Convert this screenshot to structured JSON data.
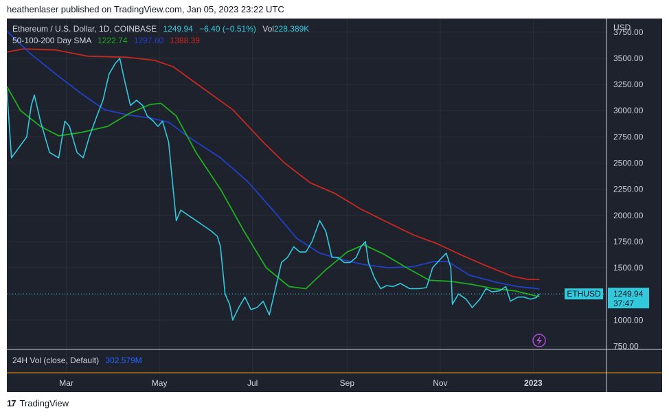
{
  "publish_line": "heathenlaser published on TradingView.com, Jan 05, 2023 23:22 UTC",
  "legend": {
    "symbol_info": "Ethereum / U.S. Dollar, 1D, COINBASE",
    "price": "1249.94",
    "change": "−6.40 (−0.51%)",
    "vol_label": "Vol",
    "vol_value": "228.389K",
    "sma_label": "50-100-200 Day SMA",
    "sma50": "1222.74",
    "sma100": "1297.60",
    "sma200": "1388.39"
  },
  "volume_pane": {
    "label": "24H Vol (close, Default)",
    "value": "302.579M"
  },
  "price_tag": {
    "symbol": "ETHUSD",
    "price": "1249.94",
    "countdown": "37:47"
  },
  "footer": {
    "brand": "TradingView",
    "logo_glyph": "17"
  },
  "colors": {
    "background": "#1e222d",
    "price_line": "#33c9dd",
    "sma50": "#1fae1f",
    "sma100": "#2140c9",
    "sma200": "#c8281e",
    "grid": "#2a2e39",
    "text": "#d1d4dc",
    "vol_value": "#2962ff",
    "bolt": "#b04bd8"
  },
  "chart_data": {
    "type": "line",
    "y_unit": "USD",
    "ylim": [
      720,
      3880
    ],
    "y_ticks": [
      750,
      1000,
      1250,
      1500,
      1750,
      2000,
      2250,
      2500,
      2750,
      3000,
      3250,
      3500,
      3750
    ],
    "y_tick_labels": [
      "750.00",
      "1000.00",
      "1250.00",
      "1500.00",
      "1750.00",
      "2000.00",
      "2250.00",
      "2500.00",
      "2750.00",
      "3000.00",
      "3250.00",
      "3500.00",
      "3750.00"
    ],
    "x_tick_labels": [
      "Mar",
      "May",
      "Jul",
      "Sep",
      "Nov",
      "2023"
    ],
    "x_ticks": [
      "2022-03-01",
      "2022-05-01",
      "2022-07-01",
      "2022-09-01",
      "2022-11-01",
      "2023-01-01"
    ],
    "x_range": [
      "2022-01-21",
      "2023-02-18"
    ],
    "grid": true,
    "last_price": 1249.94,
    "series": [
      {
        "key": "price",
        "points": [
          [
            "2022-01-21",
            3200
          ],
          [
            "2022-01-24",
            2550
          ],
          [
            "2022-01-29",
            2650
          ],
          [
            "2022-02-03",
            2750
          ],
          [
            "2022-02-06",
            3050
          ],
          [
            "2022-02-08",
            3150
          ],
          [
            "2022-02-12",
            2900
          ],
          [
            "2022-02-18",
            2600
          ],
          [
            "2022-02-24",
            2550
          ],
          [
            "2022-02-28",
            2900
          ],
          [
            "2022-03-03",
            2850
          ],
          [
            "2022-03-08",
            2600
          ],
          [
            "2022-03-12",
            2550
          ],
          [
            "2022-03-16",
            2750
          ],
          [
            "2022-03-21",
            2950
          ],
          [
            "2022-03-25",
            3100
          ],
          [
            "2022-03-29",
            3350
          ],
          [
            "2022-04-02",
            3450
          ],
          [
            "2022-04-05",
            3500
          ],
          [
            "2022-04-08",
            3300
          ],
          [
            "2022-04-12",
            3050
          ],
          [
            "2022-04-16",
            3100
          ],
          [
            "2022-04-20",
            3050
          ],
          [
            "2022-04-23",
            2950
          ],
          [
            "2022-04-27",
            2900
          ],
          [
            "2022-04-30",
            2850
          ],
          [
            "2022-05-03",
            2900
          ],
          [
            "2022-05-07",
            2700
          ],
          [
            "2022-05-09",
            2400
          ],
          [
            "2022-05-12",
            1950
          ],
          [
            "2022-05-15",
            2050
          ],
          [
            "2022-05-20",
            2000
          ],
          [
            "2022-05-25",
            1950
          ],
          [
            "2022-05-30",
            1900
          ],
          [
            "2022-06-04",
            1850
          ],
          [
            "2022-06-08",
            1800
          ],
          [
            "2022-06-10",
            1700
          ],
          [
            "2022-06-13",
            1250
          ],
          [
            "2022-06-16",
            1150
          ],
          [
            "2022-06-18",
            1000
          ],
          [
            "2022-06-22",
            1120
          ],
          [
            "2022-06-26",
            1220
          ],
          [
            "2022-06-30",
            1100
          ],
          [
            "2022-07-04",
            1120
          ],
          [
            "2022-07-08",
            1180
          ],
          [
            "2022-07-12",
            1050
          ],
          [
            "2022-07-16",
            1300
          ],
          [
            "2022-07-20",
            1550
          ],
          [
            "2022-07-24",
            1600
          ],
          [
            "2022-07-28",
            1700
          ],
          [
            "2022-08-01",
            1650
          ],
          [
            "2022-08-05",
            1650
          ],
          [
            "2022-08-09",
            1750
          ],
          [
            "2022-08-14",
            1950
          ],
          [
            "2022-08-18",
            1850
          ],
          [
            "2022-08-22",
            1600
          ],
          [
            "2022-08-26",
            1600
          ],
          [
            "2022-08-30",
            1550
          ],
          [
            "2022-09-03",
            1550
          ],
          [
            "2022-09-07",
            1600
          ],
          [
            "2022-09-10",
            1700
          ],
          [
            "2022-09-13",
            1750
          ],
          [
            "2022-09-15",
            1550
          ],
          [
            "2022-09-19",
            1400
          ],
          [
            "2022-09-23",
            1300
          ],
          [
            "2022-09-27",
            1330
          ],
          [
            "2022-10-01",
            1320
          ],
          [
            "2022-10-06",
            1350
          ],
          [
            "2022-10-12",
            1300
          ],
          [
            "2022-10-18",
            1300
          ],
          [
            "2022-10-23",
            1310
          ],
          [
            "2022-10-27",
            1500
          ],
          [
            "2022-11-01",
            1580
          ],
          [
            "2022-11-05",
            1640
          ],
          [
            "2022-11-08",
            1500
          ],
          [
            "2022-11-09",
            1150
          ],
          [
            "2022-11-13",
            1250
          ],
          [
            "2022-11-18",
            1200
          ],
          [
            "2022-11-22",
            1120
          ],
          [
            "2022-11-27",
            1200
          ],
          [
            "2022-12-01",
            1300
          ],
          [
            "2022-12-05",
            1270
          ],
          [
            "2022-12-10",
            1280
          ],
          [
            "2022-12-14",
            1320
          ],
          [
            "2022-12-17",
            1180
          ],
          [
            "2022-12-22",
            1220
          ],
          [
            "2022-12-26",
            1220
          ],
          [
            "2022-12-30",
            1200
          ],
          [
            "2023-01-03",
            1215
          ],
          [
            "2023-01-05",
            1250
          ]
        ]
      },
      {
        "key": "sma50",
        "points": [
          [
            "2022-01-21",
            3230
          ],
          [
            "2022-01-30",
            3000
          ],
          [
            "2022-02-12",
            2850
          ],
          [
            "2022-02-24",
            2760
          ],
          [
            "2022-03-10",
            2790
          ],
          [
            "2022-03-28",
            2850
          ],
          [
            "2022-04-12",
            2980
          ],
          [
            "2022-04-25",
            3060
          ],
          [
            "2022-05-02",
            3070
          ],
          [
            "2022-05-12",
            2950
          ],
          [
            "2022-05-25",
            2600
          ],
          [
            "2022-06-10",
            2250
          ],
          [
            "2022-06-25",
            1860
          ],
          [
            "2022-07-10",
            1500
          ],
          [
            "2022-07-25",
            1320
          ],
          [
            "2022-08-05",
            1300
          ],
          [
            "2022-08-18",
            1480
          ],
          [
            "2022-09-01",
            1650
          ],
          [
            "2022-09-12",
            1720
          ],
          [
            "2022-09-25",
            1630
          ],
          [
            "2022-10-10",
            1500
          ],
          [
            "2022-10-25",
            1380
          ],
          [
            "2022-11-08",
            1370
          ],
          [
            "2022-11-22",
            1340
          ],
          [
            "2022-12-06",
            1300
          ],
          [
            "2022-12-20",
            1280
          ],
          [
            "2023-01-05",
            1222
          ]
        ]
      },
      {
        "key": "sma100",
        "points": [
          [
            "2022-01-21",
            3760
          ],
          [
            "2022-02-05",
            3550
          ],
          [
            "2022-02-22",
            3350
          ],
          [
            "2022-03-12",
            3150
          ],
          [
            "2022-03-26",
            3010
          ],
          [
            "2022-04-10",
            2960
          ],
          [
            "2022-04-25",
            2930
          ],
          [
            "2022-05-07",
            2890
          ],
          [
            "2022-05-20",
            2750
          ],
          [
            "2022-06-10",
            2550
          ],
          [
            "2022-06-28",
            2320
          ],
          [
            "2022-07-15",
            2040
          ],
          [
            "2022-07-30",
            1780
          ],
          [
            "2022-08-14",
            1640
          ],
          [
            "2022-08-28",
            1580
          ],
          [
            "2022-09-12",
            1530
          ],
          [
            "2022-09-28",
            1500
          ],
          [
            "2022-10-14",
            1510
          ],
          [
            "2022-10-28",
            1560
          ],
          [
            "2022-11-06",
            1560
          ],
          [
            "2022-11-20",
            1430
          ],
          [
            "2022-12-08",
            1360
          ],
          [
            "2022-12-22",
            1320
          ],
          [
            "2023-01-05",
            1298
          ]
        ]
      },
      {
        "key": "sma200",
        "points": [
          [
            "2022-01-21",
            3560
          ],
          [
            "2022-02-01",
            3590
          ],
          [
            "2022-02-22",
            3580
          ],
          [
            "2022-03-15",
            3520
          ],
          [
            "2022-04-10",
            3510
          ],
          [
            "2022-04-28",
            3480
          ],
          [
            "2022-05-10",
            3420
          ],
          [
            "2022-05-28",
            3230
          ],
          [
            "2022-06-18",
            3010
          ],
          [
            "2022-07-08",
            2700
          ],
          [
            "2022-07-22",
            2500
          ],
          [
            "2022-08-08",
            2310
          ],
          [
            "2022-08-24",
            2210
          ],
          [
            "2022-09-10",
            2060
          ],
          [
            "2022-09-28",
            1930
          ],
          [
            "2022-10-15",
            1810
          ],
          [
            "2022-10-30",
            1730
          ],
          [
            "2022-11-15",
            1620
          ],
          [
            "2022-12-01",
            1520
          ],
          [
            "2022-12-18",
            1420
          ],
          [
            "2022-12-28",
            1390
          ],
          [
            "2023-01-05",
            1388
          ]
        ]
      }
    ]
  }
}
